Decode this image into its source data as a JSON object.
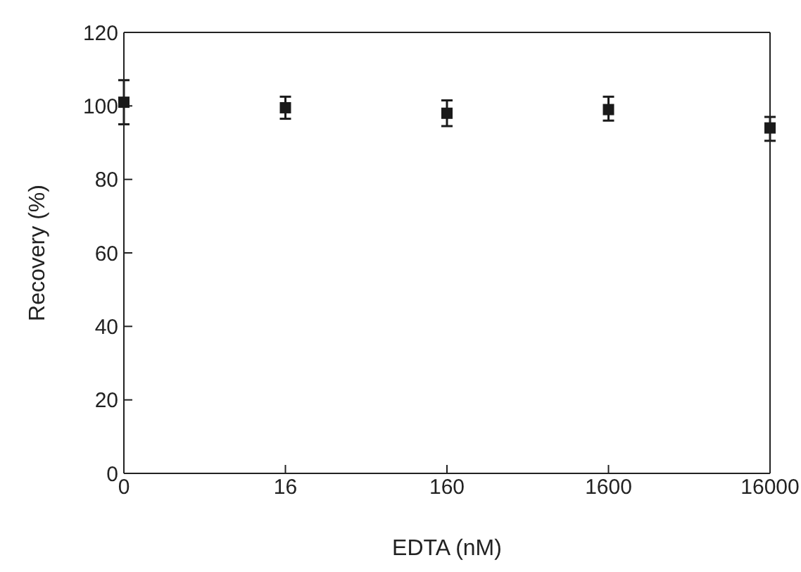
{
  "chart_data": {
    "type": "scatter",
    "xlabel": "EDTA (nM)",
    "ylabel": "Recovery (%)",
    "categories": [
      "0",
      "16",
      "160",
      "1600",
      "16000"
    ],
    "series": [
      {
        "color": "#1a1a1a",
        "values": [
          101,
          99.5,
          98,
          99,
          94
        ],
        "errors": [
          [
            95,
            107
          ],
          [
            96.5,
            102.5
          ],
          [
            94.5,
            101.5
          ],
          [
            96,
            102.5
          ],
          [
            90.5,
            97
          ]
        ]
      }
    ],
    "ylim": [
      0,
      120
    ],
    "yticks": [
      0,
      20,
      40,
      60,
      80,
      100,
      120
    ],
    "marker": "square"
  }
}
